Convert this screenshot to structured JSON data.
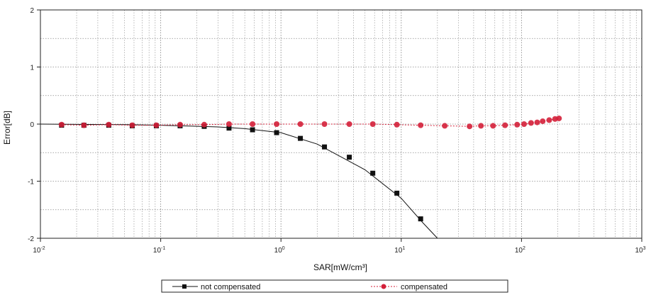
{
  "chart_data": {
    "type": "line",
    "title": "",
    "xlabel": "SAR[mW/cm³]",
    "ylabel": "Error[dB]",
    "xscale": "log",
    "xlim": [
      0.01,
      1000
    ],
    "ylim": [
      -2,
      2
    ],
    "x_ticks": [
      {
        "value": 0.01,
        "base": "10",
        "exp": "-2"
      },
      {
        "value": 0.1,
        "base": "10",
        "exp": "-1"
      },
      {
        "value": 1,
        "base": "10",
        "exp": "0"
      },
      {
        "value": 10,
        "base": "10",
        "exp": "1"
      },
      {
        "value": 100,
        "base": "10",
        "exp": "2"
      },
      {
        "value": 1000,
        "base": "10",
        "exp": "3"
      }
    ],
    "y_ticks": [
      {
        "value": 2,
        "label": "2"
      },
      {
        "value": 1,
        "label": "1"
      },
      {
        "value": 0,
        "label": "0"
      },
      {
        "value": -1,
        "label": "-1"
      },
      {
        "value": -2,
        "label": "-2"
      }
    ],
    "grid": true,
    "legend_position": "bottom",
    "series": [
      {
        "name": "not compensated",
        "color": "#111111",
        "marker": "square",
        "x": [
          0.015,
          0.023,
          0.037,
          0.058,
          0.092,
          0.145,
          0.23,
          0.37,
          0.58,
          0.92,
          1.45,
          2.3,
          3.7,
          5.8,
          9.2,
          14.5
        ],
        "y": [
          -0.02,
          -0.02,
          -0.02,
          -0.03,
          -0.03,
          -0.03,
          -0.04,
          -0.07,
          -0.1,
          -0.15,
          -0.25,
          -0.4,
          -0.58,
          -0.86,
          -1.21,
          -1.66
        ]
      },
      {
        "name": "compensated",
        "color": "#d4203a",
        "marker": "circle",
        "x": [
          0.015,
          0.023,
          0.037,
          0.058,
          0.092,
          0.145,
          0.23,
          0.37,
          0.58,
          0.92,
          1.45,
          2.3,
          3.7,
          5.8,
          9.2,
          14.5,
          23,
          37,
          46,
          58,
          73,
          92,
          105,
          120,
          135,
          150,
          170,
          190,
          205
        ],
        "y": [
          -0.01,
          -0.02,
          -0.01,
          -0.02,
          -0.02,
          -0.01,
          -0.01,
          0.0,
          0.0,
          0.0,
          0.0,
          0.0,
          0.0,
          0.0,
          -0.01,
          -0.02,
          -0.03,
          -0.04,
          -0.03,
          -0.03,
          -0.02,
          -0.01,
          0.0,
          0.02,
          0.03,
          0.05,
          0.07,
          0.09,
          0.1
        ]
      }
    ],
    "fit_curve": {
      "series": "not compensated",
      "x": [
        0.01,
        0.05,
        0.1,
        0.3,
        0.5,
        1,
        2,
        5,
        10,
        15,
        20
      ],
      "y": [
        0.0,
        -0.01,
        -0.02,
        -0.05,
        -0.08,
        -0.15,
        -0.35,
        -0.8,
        -1.3,
        -1.72,
        -2.0
      ]
    }
  }
}
